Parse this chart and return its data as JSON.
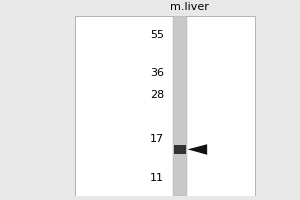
{
  "bg_color": "#e8e8e8",
  "panel_bg": "#ffffff",
  "lane_label": "m.liver",
  "lane_label_fontsize": 8,
  "mw_markers": [
    55,
    36,
    28,
    17,
    11
  ],
  "band_mw": 15.2,
  "arrow_color": "#111111",
  "lane_color_top": "#cccccc",
  "lane_color_mid": "#b0b0b0",
  "band_color": "#333333",
  "marker_fontsize": 8,
  "fig_width": 3.0,
  "fig_height": 2.0,
  "dpi": 100,
  "y_min": 9,
  "y_max": 68
}
